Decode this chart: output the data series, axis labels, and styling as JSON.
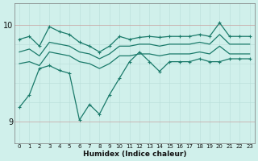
{
  "x": [
    0,
    1,
    2,
    3,
    4,
    5,
    6,
    7,
    8,
    9,
    10,
    11,
    12,
    13,
    14,
    15,
    16,
    17,
    18,
    19,
    20,
    21,
    22,
    23
  ],
  "line_top": [
    9.85,
    9.88,
    9.78,
    9.98,
    9.93,
    9.9,
    9.82,
    9.78,
    9.72,
    9.78,
    9.88,
    9.85,
    9.87,
    9.88,
    9.87,
    9.88,
    9.88,
    9.88,
    9.9,
    9.88,
    10.02,
    9.88,
    9.88,
    9.88
  ],
  "line_upper_mid": [
    9.72,
    9.75,
    9.68,
    9.82,
    9.8,
    9.78,
    9.72,
    9.7,
    9.65,
    9.7,
    9.78,
    9.78,
    9.8,
    9.8,
    9.78,
    9.8,
    9.8,
    9.8,
    9.82,
    9.8,
    9.9,
    9.8,
    9.8,
    9.8
  ],
  "line_lower_mid": [
    9.6,
    9.62,
    9.58,
    9.72,
    9.7,
    9.68,
    9.62,
    9.6,
    9.55,
    9.6,
    9.68,
    9.68,
    9.7,
    9.7,
    9.68,
    9.7,
    9.7,
    9.7,
    9.72,
    9.7,
    9.78,
    9.7,
    9.7,
    9.7
  ],
  "line_bottom": [
    9.15,
    9.28,
    9.55,
    9.58,
    9.53,
    9.5,
    9.02,
    9.18,
    9.08,
    9.28,
    9.45,
    9.62,
    9.72,
    9.62,
    9.52,
    9.62,
    9.62,
    9.62,
    9.65,
    9.62,
    9.62,
    9.65,
    9.65,
    9.65
  ],
  "line_color": "#1a7a6a",
  "bg_color": "#d0f0eb",
  "xlabel": "Humidex (Indice chaleur)",
  "yticks": [
    9,
    10
  ],
  "ylim": [
    8.78,
    10.22
  ],
  "xlim": [
    -0.5,
    23.5
  ]
}
